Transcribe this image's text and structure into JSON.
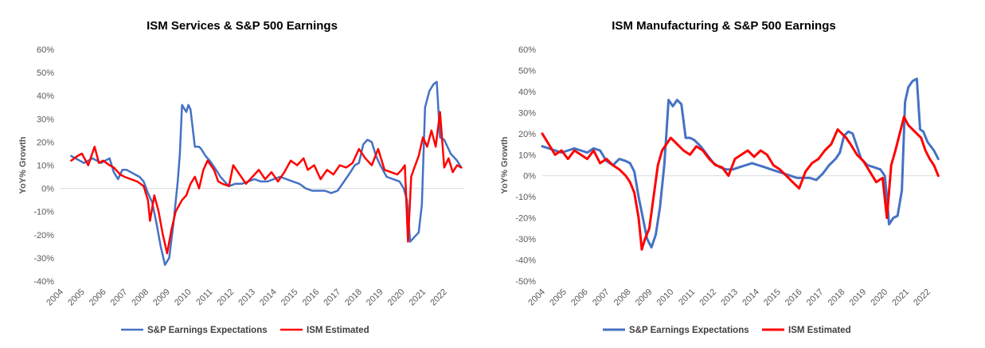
{
  "colors": {
    "expectations": "#4472C4",
    "ism": "#FF0000",
    "axis": "#D9D9D9",
    "text": "#595959"
  },
  "chart_data": [
    {
      "type": "line",
      "title": "ISM Services & S&P 500 Earnings",
      "xlabel": "",
      "ylabel": "YoY% Growth",
      "ylim": [
        -40,
        60
      ],
      "yticks": [
        -40,
        -30,
        -20,
        -10,
        0,
        10,
        20,
        30,
        40,
        50,
        60
      ],
      "ytick_labels": [
        "-40%",
        "-30%",
        "-20%",
        "-10%",
        "0%",
        "10%",
        "20%",
        "30%",
        "40%",
        "50%",
        "60%"
      ],
      "xlim": [
        2004.0,
        2022.9
      ],
      "xticks": [
        2004,
        2005,
        2006,
        2007,
        2008,
        2009,
        2010,
        2011,
        2012,
        2013,
        2014,
        2015,
        2016,
        2017,
        2018,
        2019,
        2020,
        2021,
        2022
      ],
      "xtick_labels": [
        "2004",
        "2005",
        "2006",
        "2007",
        "2008",
        "2009",
        "2010",
        "2011",
        "2012",
        "2013",
        "2014",
        "2015",
        "2016",
        "2017",
        "2018",
        "2019",
        "2020",
        "2021",
        "2022"
      ],
      "grid": false,
      "legend": "bottom",
      "series": [
        {
          "name": "S&P Earnings Expectations",
          "color": "#4472C4",
          "x": [
            2004.5,
            2004.7,
            2004.9,
            2005.1,
            2005.3,
            2005.5,
            2005.7,
            2005.9,
            2006.1,
            2006.3,
            2006.5,
            2006.7,
            2006.9,
            2007.1,
            2007.3,
            2007.5,
            2007.7,
            2007.9,
            2008.1,
            2008.3,
            2008.5,
            2008.7,
            2008.9,
            2009.1,
            2009.3,
            2009.5,
            2009.6,
            2009.7,
            2009.9,
            2010.0,
            2010.1,
            2010.3,
            2010.5,
            2010.6,
            2010.8,
            2011.0,
            2011.3,
            2011.5,
            2011.7,
            2011.9,
            2012.2,
            2012.5,
            2012.8,
            2013.1,
            2013.4,
            2013.7,
            2014.0,
            2014.3,
            2014.6,
            2014.9,
            2015.2,
            2015.5,
            2015.8,
            2016.1,
            2016.4,
            2016.7,
            2017.0,
            2017.3,
            2017.6,
            2017.8,
            2018.0,
            2018.2,
            2018.4,
            2018.6,
            2018.8,
            2019.0,
            2019.3,
            2019.6,
            2019.9,
            2020.1,
            2020.25,
            2020.4,
            2020.6,
            2020.8,
            2020.95,
            2021.1,
            2021.3,
            2021.5,
            2021.65,
            2021.8,
            2022.0,
            2022.3,
            2022.6,
            2022.8
          ],
          "values": [
            14,
            13,
            12,
            11,
            12,
            13,
            12,
            11,
            12,
            13,
            7,
            4,
            8,
            8,
            7,
            6,
            5,
            3,
            -2,
            -6,
            -15,
            -25,
            -33,
            -30,
            -15,
            3,
            15,
            36,
            33,
            36,
            34,
            18,
            18,
            17,
            14,
            12,
            8,
            5,
            3,
            1,
            2,
            2,
            3,
            4,
            3,
            3,
            4,
            5,
            4,
            3,
            2,
            0,
            -1,
            -1,
            -1,
            -2,
            -1,
            3,
            7,
            10,
            11,
            19,
            21,
            20,
            14,
            10,
            5,
            4,
            3,
            0,
            -5,
            -23,
            -21,
            -19,
            -7,
            35,
            42,
            45,
            46,
            22,
            21,
            15,
            12,
            9
          ]
        },
        {
          "name": "ISM Estimated",
          "color": "#FF0000",
          "x": [
            2004.5,
            2004.8,
            2005.0,
            2005.3,
            2005.6,
            2005.8,
            2006.0,
            2006.3,
            2006.5,
            2006.8,
            2007.0,
            2007.3,
            2007.6,
            2007.9,
            2008.1,
            2008.2,
            2008.4,
            2008.6,
            2008.8,
            2009.0,
            2009.2,
            2009.4,
            2009.7,
            2009.9,
            2010.1,
            2010.3,
            2010.5,
            2010.7,
            2010.9,
            2011.2,
            2011.4,
            2011.6,
            2011.9,
            2012.1,
            2012.4,
            2012.7,
            2013.0,
            2013.3,
            2013.6,
            2013.9,
            2014.2,
            2014.5,
            2014.8,
            2015.1,
            2015.4,
            2015.6,
            2015.9,
            2016.2,
            2016.5,
            2016.8,
            2017.1,
            2017.4,
            2017.7,
            2018.0,
            2018.3,
            2018.6,
            2018.9,
            2019.2,
            2019.5,
            2019.8,
            2020.0,
            2020.15,
            2020.3,
            2020.45,
            2020.6,
            2020.8,
            2021.0,
            2021.2,
            2021.4,
            2021.6,
            2021.8,
            2022.0,
            2022.2,
            2022.4,
            2022.6,
            2022.8
          ],
          "values": [
            12,
            14,
            15,
            10,
            18,
            11,
            12,
            10,
            9,
            6,
            5,
            4,
            3,
            1,
            -5,
            -14,
            -3,
            -10,
            -20,
            -28,
            -18,
            -10,
            -5,
            -3,
            2,
            5,
            0,
            8,
            12,
            8,
            3,
            2,
            1,
            10,
            6,
            2,
            5,
            8,
            4,
            7,
            3,
            7,
            12,
            10,
            13,
            8,
            10,
            4,
            8,
            6,
            10,
            9,
            11,
            17,
            13,
            10,
            17,
            8,
            7,
            6,
            8,
            10,
            -23,
            5,
            9,
            14,
            22,
            18,
            25,
            18,
            33,
            9,
            13,
            7,
            10,
            9
          ]
        }
      ]
    },
    {
      "type": "line",
      "title": "ISM Manufacturing & S&P 500 Earnings",
      "xlabel": "",
      "ylabel": "YoY% Growth",
      "ylim": [
        -50,
        60
      ],
      "yticks": [
        -50,
        -40,
        -30,
        -20,
        -10,
        0,
        10,
        20,
        30,
        40,
        50,
        60
      ],
      "ytick_labels": [
        "-50%",
        "-40%",
        "-30%",
        "-20%",
        "-10%",
        "0%",
        "10%",
        "20%",
        "30%",
        "40%",
        "50%",
        "60%"
      ],
      "xlim": [
        2004.0,
        2022.6
      ],
      "xticks": [
        2004,
        2005,
        2006,
        2007,
        2008,
        2009,
        2010,
        2011,
        2012,
        2013,
        2014,
        2015,
        2016,
        2017,
        2018,
        2019,
        2020,
        2021,
        2022
      ],
      "xtick_labels": [
        "2004",
        "2005",
        "2006",
        "2007",
        "2008",
        "2009",
        "2010",
        "2011",
        "2012",
        "2013",
        "2014",
        "2015",
        "2016",
        "2017",
        "2018",
        "2019",
        "2020",
        "2021",
        "2022"
      ],
      "grid": false,
      "legend": "bottom",
      "series": [
        {
          "name": "S&P Earnings Expectations",
          "color": "#4472C4",
          "x": [
            2004.0,
            2004.3,
            2004.6,
            2004.9,
            2005.2,
            2005.5,
            2005.8,
            2006.1,
            2006.4,
            2006.7,
            2007.0,
            2007.3,
            2007.6,
            2007.9,
            2008.1,
            2008.3,
            2008.5,
            2008.7,
            2008.9,
            2009.1,
            2009.3,
            2009.5,
            2009.7,
            2009.8,
            2009.9,
            2010.1,
            2010.3,
            2010.5,
            2010.7,
            2010.9,
            2011.1,
            2011.4,
            2011.7,
            2012.0,
            2012.3,
            2012.6,
            2012.9,
            2013.2,
            2013.5,
            2013.8,
            2014.1,
            2014.4,
            2014.7,
            2015.0,
            2015.3,
            2015.6,
            2015.9,
            2016.2,
            2016.5,
            2016.8,
            2017.1,
            2017.4,
            2017.7,
            2017.9,
            2018.1,
            2018.3,
            2018.5,
            2018.7,
            2018.9,
            2019.2,
            2019.5,
            2019.8,
            2020.0,
            2020.1,
            2020.2,
            2020.4,
            2020.6,
            2020.8,
            2020.95,
            2021.1,
            2021.3,
            2021.5,
            2021.65,
            2021.8,
            2022.0,
            2022.3,
            2022.5
          ],
          "values": [
            14,
            13,
            12,
            11,
            12,
            13,
            12,
            11,
            13,
            12,
            7,
            5,
            8,
            7,
            6,
            2,
            -10,
            -20,
            -30,
            -34,
            -28,
            -15,
            5,
            20,
            36,
            33,
            36,
            34,
            18,
            18,
            17,
            14,
            10,
            6,
            4,
            3,
            3,
            4,
            5,
            6,
            5,
            4,
            3,
            2,
            1,
            0,
            -1,
            -1,
            -1,
            -2,
            1,
            5,
            8,
            11,
            19,
            21,
            20,
            14,
            8,
            5,
            4,
            3,
            0,
            -10,
            -23,
            -20,
            -19,
            -7,
            35,
            42,
            45,
            46,
            22,
            21,
            16,
            12,
            8
          ]
        },
        {
          "name": "ISM Estimated",
          "color": "#FF0000",
          "x": [
            2004.0,
            2004.3,
            2004.6,
            2004.9,
            2005.2,
            2005.5,
            2005.8,
            2006.1,
            2006.4,
            2006.7,
            2007.0,
            2007.3,
            2007.6,
            2007.9,
            2008.1,
            2008.3,
            2008.5,
            2008.65,
            2008.8,
            2009.0,
            2009.2,
            2009.4,
            2009.6,
            2009.8,
            2010.0,
            2010.3,
            2010.6,
            2010.9,
            2011.2,
            2011.5,
            2011.8,
            2012.1,
            2012.4,
            2012.7,
            2013.0,
            2013.3,
            2013.6,
            2013.9,
            2014.2,
            2014.5,
            2014.8,
            2015.1,
            2015.4,
            2015.7,
            2016.0,
            2016.3,
            2016.6,
            2016.9,
            2017.2,
            2017.5,
            2017.8,
            2018.0,
            2018.2,
            2018.4,
            2018.7,
            2019.0,
            2019.3,
            2019.6,
            2019.9,
            2020.1,
            2020.3,
            2020.5,
            2020.7,
            2020.9,
            2021.1,
            2021.3,
            2021.5,
            2021.7,
            2021.9,
            2022.1,
            2022.3,
            2022.5
          ],
          "values": [
            20,
            15,
            10,
            12,
            8,
            12,
            10,
            8,
            12,
            6,
            8,
            5,
            3,
            0,
            -3,
            -8,
            -20,
            -35,
            -30,
            -25,
            -10,
            5,
            12,
            15,
            18,
            15,
            12,
            10,
            14,
            12,
            8,
            5,
            4,
            0,
            8,
            10,
            12,
            9,
            12,
            10,
            5,
            3,
            0,
            -3,
            -6,
            2,
            6,
            8,
            12,
            15,
            22,
            20,
            18,
            15,
            10,
            7,
            2,
            -3,
            -1,
            -20,
            5,
            12,
            20,
            28,
            24,
            22,
            20,
            18,
            12,
            8,
            5,
            0
          ]
        }
      ]
    }
  ]
}
